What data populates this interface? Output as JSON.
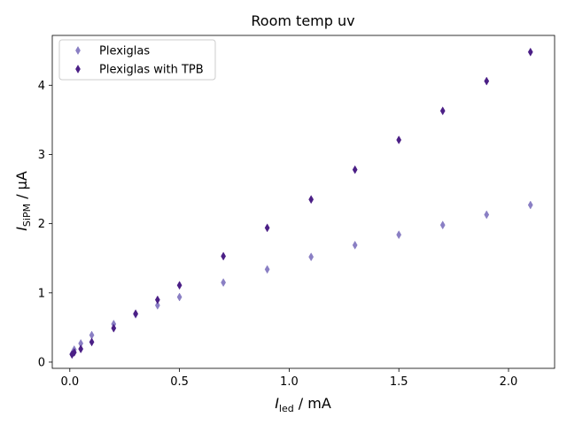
{
  "chart_data": {
    "type": "scatter",
    "title": "Room temp uv",
    "xlabel": {
      "var": "I",
      "sub": "led",
      "unit": " / mA"
    },
    "ylabel": {
      "var": "I",
      "sub": "SiPM",
      "unit": " / μA"
    },
    "xlim": [
      -0.08,
      2.21
    ],
    "ylim": [
      -0.09,
      4.72
    ],
    "xticks": [
      0.0,
      0.5,
      1.0,
      1.5,
      2.0
    ],
    "xtick_labels": [
      "0.0",
      "0.5",
      "1.0",
      "1.5",
      "2.0"
    ],
    "yticks": [
      0,
      1,
      2,
      3,
      4
    ],
    "ytick_labels": [
      "0",
      "1",
      "2",
      "3",
      "4"
    ],
    "grid": false,
    "legend_position": "top-left",
    "marker": "thin_diamond",
    "series": [
      {
        "name": "Plexiglas",
        "color": "#8a7fc4",
        "points": [
          [
            0.01,
            0.12
          ],
          [
            0.02,
            0.18
          ],
          [
            0.05,
            0.27
          ],
          [
            0.1,
            0.39
          ],
          [
            0.2,
            0.55
          ],
          [
            0.3,
            0.69
          ],
          [
            0.4,
            0.82
          ],
          [
            0.5,
            0.94
          ],
          [
            0.7,
            1.15
          ],
          [
            0.9,
            1.34
          ],
          [
            1.1,
            1.52
          ],
          [
            1.3,
            1.69
          ],
          [
            1.5,
            1.84
          ],
          [
            1.7,
            1.98
          ],
          [
            1.9,
            2.13
          ],
          [
            2.1,
            2.27
          ]
        ]
      },
      {
        "name": "Plexiglas with TPB",
        "color": "#4b1f86",
        "points": [
          [
            0.01,
            0.11
          ],
          [
            0.02,
            0.14
          ],
          [
            0.05,
            0.19
          ],
          [
            0.1,
            0.29
          ],
          [
            0.2,
            0.49
          ],
          [
            0.3,
            0.7
          ],
          [
            0.4,
            0.9
          ],
          [
            0.5,
            1.11
          ],
          [
            0.7,
            1.53
          ],
          [
            0.9,
            1.94
          ],
          [
            1.1,
            2.35
          ],
          [
            1.3,
            2.78
          ],
          [
            1.5,
            3.21
          ],
          [
            1.7,
            3.63
          ],
          [
            1.9,
            4.06
          ],
          [
            2.1,
            4.48
          ]
        ]
      }
    ]
  }
}
